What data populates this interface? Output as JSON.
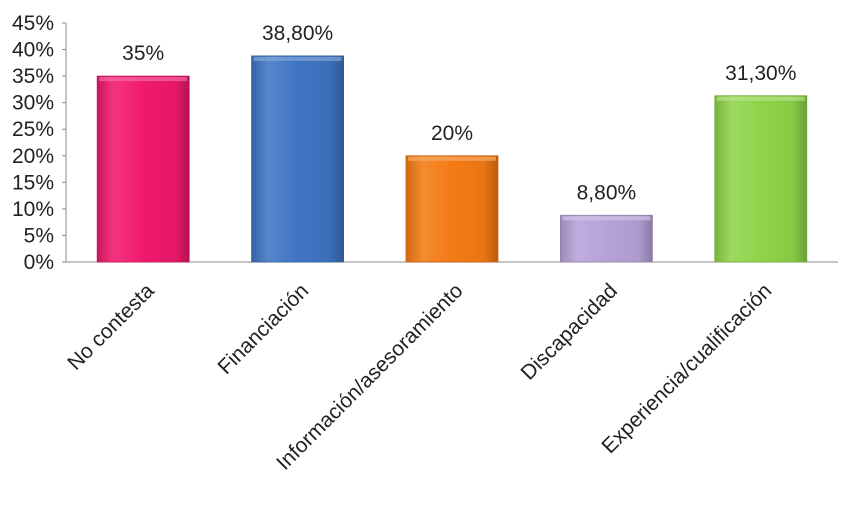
{
  "chart_data": {
    "type": "bar",
    "categories": [
      "No contesta",
      "Financiación",
      "Información/asesoramiento",
      "Discapacidad",
      "Experiencia/cualificación"
    ],
    "values": [
      35,
      38.8,
      20,
      8.8,
      31.3
    ],
    "data_labels": [
      "35%",
      "38,80%",
      "20%",
      "8,80%",
      "31,30%"
    ],
    "colors": [
      "#f0196c",
      "#3f75c3",
      "#f47b14",
      "#b6a2d8",
      "#8ed449"
    ],
    "ylim": [
      0,
      45
    ],
    "yticks": [
      0,
      5,
      10,
      15,
      20,
      25,
      30,
      35,
      40,
      45
    ],
    "ytick_labels": [
      "0%",
      "5%",
      "10%",
      "15%",
      "20%",
      "25%",
      "30%",
      "35%",
      "40%",
      "45%"
    ],
    "title": "",
    "xlabel": "",
    "ylabel": "",
    "grid": false,
    "legend": "none"
  }
}
